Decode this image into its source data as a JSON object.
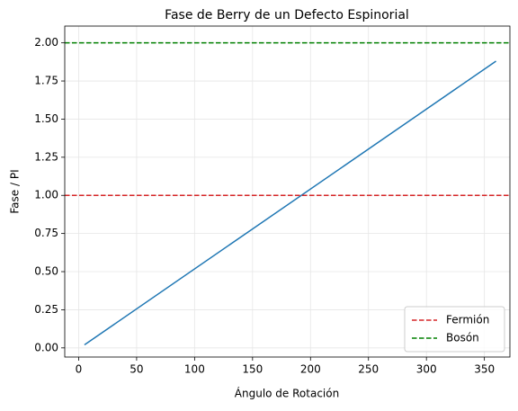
{
  "chart_data": {
    "type": "line",
    "title": "Fase de Berry de un Defecto Espinorial",
    "x_label": "Ángulo de Rotación",
    "y_label": "Fase / PI",
    "series": [
      {
        "x": [
          5,
          360
        ],
        "values": [
          0.02,
          1.88
        ],
        "color": "#1f77b4"
      }
    ],
    "reference_lines": [
      {
        "name": "Fermión",
        "value": 1,
        "color": "#d62728",
        "dash": true
      },
      {
        "name": "Bosón",
        "value": 2,
        "color": "#008000",
        "dash": true
      }
    ],
    "xlim": [
      -12,
      372
    ],
    "ylim": [
      -0.06,
      2.11
    ],
    "xticks": [
      0,
      50,
      100,
      150,
      200,
      250,
      300,
      350
    ],
    "yticks": [
      {
        "value": 0,
        "label": "0.00"
      },
      {
        "value": 0.25,
        "label": "0.25"
      },
      {
        "value": 0.5,
        "label": "0.50"
      },
      {
        "value": 0.75,
        "label": "0.75"
      },
      {
        "value": 1,
        "label": "1.00"
      },
      {
        "value": 1.25,
        "label": "1.25"
      },
      {
        "value": 1.5,
        "label": "1.50"
      },
      {
        "value": 1.75,
        "label": "1.75"
      },
      {
        "value": 2,
        "label": "2.00"
      }
    ],
    "grid": true,
    "legend": "lower right"
  }
}
